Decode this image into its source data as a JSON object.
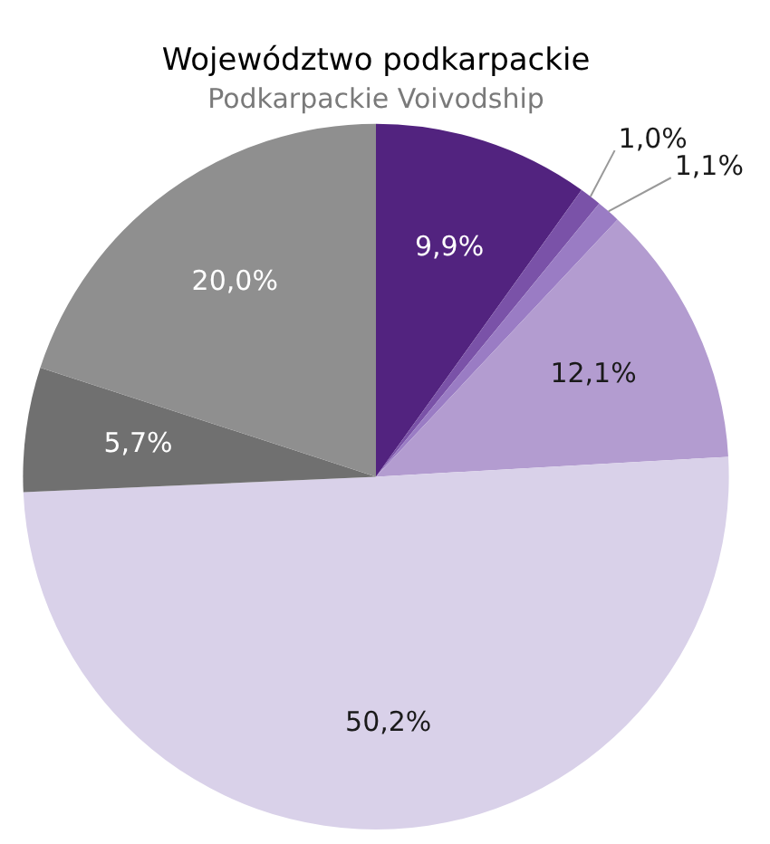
{
  "chart_data": {
    "type": "pie",
    "title": "Województwo podkarpackie",
    "subtitle": "Podkarpackie Voivodship",
    "categories": [
      null,
      null,
      null,
      null,
      null,
      null,
      null
    ],
    "values": [
      9.9,
      1.0,
      1.1,
      12.1,
      50.2,
      5.7,
      20.0
    ],
    "colors": [
      "#52237f",
      "#7a52a8",
      "#9a7cc4",
      "#b39cd0",
      "#d9d1e9",
      "#707070",
      "#8f8f8f"
    ],
    "value_labels": [
      "9,9%",
      "1,0%",
      "1,1%",
      "12,1%",
      "50,2%",
      "5,7%",
      "20,0%"
    ],
    "legend": false
  }
}
